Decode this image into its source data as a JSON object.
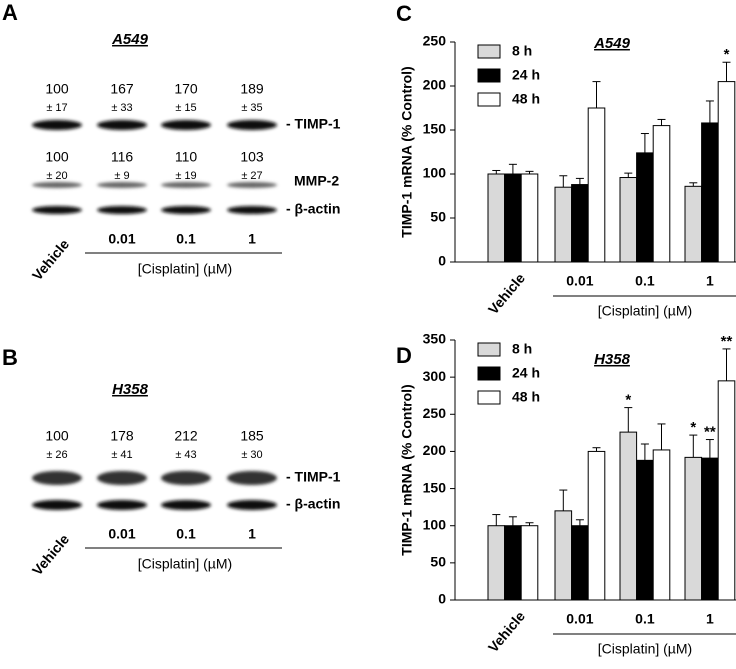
{
  "panel_a": {
    "label": "A",
    "title": "A549",
    "lanes": [
      "Vehicle",
      "0.01",
      "0.1",
      "1"
    ],
    "xlabel": "[Cisplatin] (µM)",
    "blots": [
      {
        "name": "- TIMP-1",
        "values": [
          100,
          167,
          170,
          189
        ],
        "errors": [
          17,
          33,
          15,
          35
        ],
        "error_labels": [
          "± 17",
          "± 33",
          "± 15",
          "± 35"
        ]
      },
      {
        "name": "MMP-2",
        "values": [
          100,
          116,
          110,
          103
        ],
        "errors": [
          20,
          9,
          19,
          27
        ],
        "error_labels": [
          "± 20",
          "± 9",
          "± 19",
          "± 27"
        ]
      },
      {
        "name": "- β-actin"
      }
    ]
  },
  "panel_b": {
    "label": "B",
    "title": "H358",
    "lanes": [
      "Vehicle",
      "0.01",
      "0.1",
      "1"
    ],
    "xlabel": "[Cisplatin] (µM)",
    "blots": [
      {
        "name": "- TIMP-1",
        "values": [
          100,
          178,
          212,
          185
        ],
        "errors": [
          26,
          41,
          43,
          30
        ],
        "error_labels": [
          "± 26",
          "± 41",
          "± 43",
          "± 30"
        ]
      },
      {
        "name": "- β-actin"
      }
    ]
  },
  "chart_data": [
    {
      "type": "bar",
      "panel_label": "C",
      "title": "A549",
      "ylabel": "TIMP-1 mRNA (% Control)",
      "xlabel": "[Cisplatin] (µM)",
      "categories": [
        "Vehicle",
        "0.01",
        "0.1",
        "1"
      ],
      "series": [
        {
          "name": "8 h",
          "color": "#d9d9d9",
          "values": [
            100,
            85,
            96,
            86
          ],
          "errors": [
            4,
            13,
            5,
            4
          ],
          "significance": [
            null,
            null,
            null,
            null
          ]
        },
        {
          "name": "24 h",
          "color": "#000000",
          "values": [
            100,
            88,
            124,
            158
          ],
          "errors": [
            11,
            7,
            22,
            25
          ],
          "significance": [
            null,
            null,
            null,
            null
          ]
        },
        {
          "name": "48 h",
          "color": "#ffffff",
          "values": [
            100,
            175,
            155,
            205
          ],
          "errors": [
            3,
            30,
            7,
            22
          ],
          "significance": [
            null,
            null,
            null,
            "*"
          ]
        }
      ],
      "ylim": [
        0,
        250
      ],
      "yticks": [
        0,
        50,
        100,
        150,
        200,
        250
      ]
    },
    {
      "type": "bar",
      "panel_label": "D",
      "title": "H358",
      "ylabel": "TIMP-1 mRNA (% Control)",
      "xlabel": "[Cisplatin] (µM)",
      "categories": [
        "Vehicle",
        "0.01",
        "0.1",
        "1"
      ],
      "series": [
        {
          "name": "8 h",
          "color": "#d9d9d9",
          "values": [
            100,
            120,
            226,
            192
          ],
          "errors": [
            15,
            28,
            33,
            30
          ],
          "significance": [
            null,
            null,
            "*",
            "*"
          ]
        },
        {
          "name": "24 h",
          "color": "#000000",
          "values": [
            100,
            100,
            188,
            191
          ],
          "errors": [
            12,
            8,
            22,
            25
          ],
          "significance": [
            null,
            null,
            null,
            "**"
          ]
        },
        {
          "name": "48 h",
          "color": "#ffffff",
          "values": [
            100,
            200,
            202,
            295
          ],
          "errors": [
            4,
            5,
            35,
            43
          ],
          "significance": [
            null,
            null,
            null,
            "**"
          ]
        }
      ],
      "ylim": [
        0,
        350
      ],
      "yticks": [
        0,
        50,
        100,
        150,
        200,
        250,
        300,
        350
      ]
    }
  ]
}
